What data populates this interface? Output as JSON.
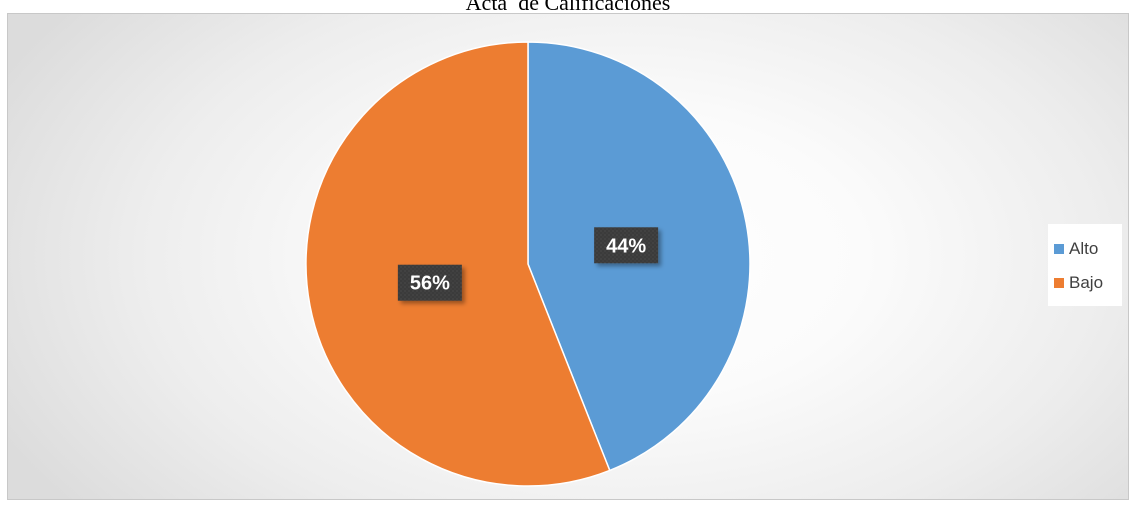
{
  "chart_data": {
    "type": "pie",
    "title": "Acta  de Calificaciones",
    "categories": [
      "Alto",
      "Bajo"
    ],
    "values": [
      44,
      56
    ],
    "data_labels": [
      "44%",
      "56%"
    ],
    "colors": [
      "#5b9bd5",
      "#ed7d31"
    ],
    "start_angle_deg": 0,
    "direction": "clockwise",
    "legend": {
      "placement": "right",
      "items": [
        {
          "label": "Alto",
          "color": "#5b9bd5"
        },
        {
          "label": "Bajo",
          "color": "#ed7d31"
        }
      ]
    }
  }
}
